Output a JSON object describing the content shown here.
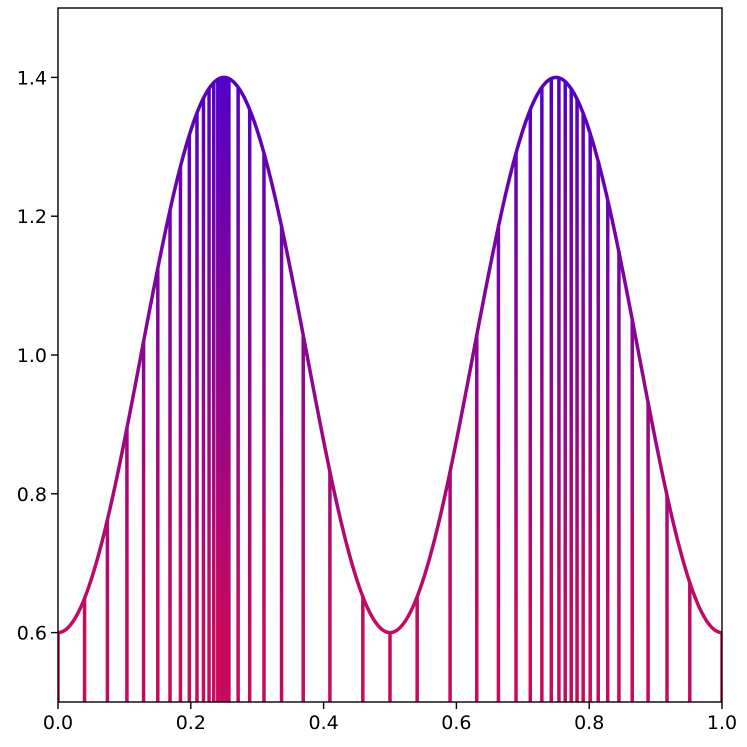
{
  "chart_data": {
    "type": "line",
    "title": "",
    "xlabel": "",
    "ylabel": "",
    "xlim": [
      0.0,
      1.0
    ],
    "ylim": [
      0.5,
      1.5
    ],
    "x_ticks": [
      "0.0",
      "0.2",
      "0.4",
      "0.6",
      "0.8",
      "1.0"
    ],
    "y_ticks": [
      "0.6",
      "0.8",
      "1.0",
      "1.2",
      "1.4"
    ],
    "grid": false,
    "legend": "none",
    "curve": {
      "formula": "y = 1 - 0.4*cos(4*pi*x)",
      "baseline": 0.5,
      "color_low": "#c70a5c",
      "color_high": "#5200c7",
      "y_min": 0.6,
      "y_max": 1.4
    },
    "stems_x": [
      0.0,
      0.04,
      0.0744,
      0.1038,
      0.1289,
      0.1503,
      0.1687,
      0.1844,
      0.1978,
      0.2093,
      0.2191,
      0.2275,
      0.2346,
      0.2407,
      0.2459,
      0.2504,
      0.2541,
      0.2574,
      0.2713,
      0.2887,
      0.3102,
      0.3367,
      0.3693,
      0.4095,
      0.4591,
      0.5,
      0.5409,
      0.5905,
      0.6307,
      0.6633,
      0.6898,
      0.7113,
      0.7287,
      0.7429,
      0.7544,
      0.7639,
      0.7729,
      0.7817,
      0.7909,
      0.8015,
      0.8136,
      0.8279,
      0.8448,
      0.8648,
      0.8887,
      0.9172,
      0.9515,
      1.0
    ]
  }
}
